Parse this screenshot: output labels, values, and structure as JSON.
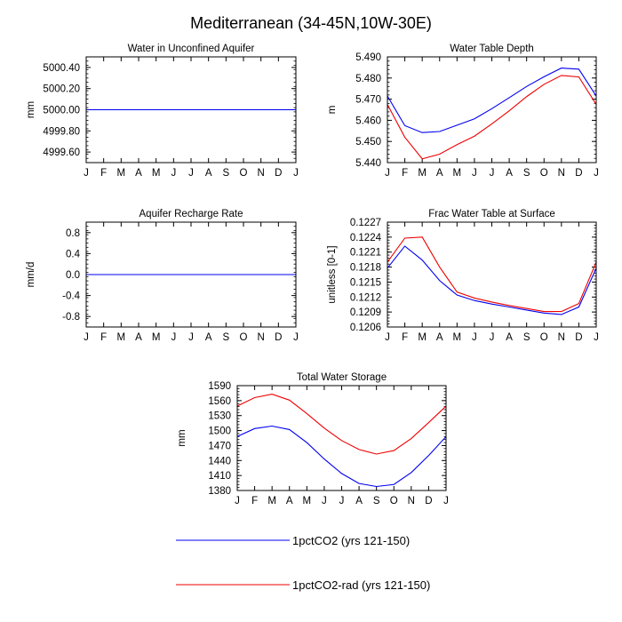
{
  "title": "Mediterranean (34-45N,10W-30E)",
  "colors": {
    "series1": "#0000ee",
    "series2": "#ee0000",
    "frame": "#000000"
  },
  "months": [
    "J",
    "F",
    "M",
    "A",
    "M",
    "J",
    "J",
    "A",
    "S",
    "O",
    "N",
    "D",
    "J"
  ],
  "legend": [
    {
      "label": "1pctCO2 (yrs 121-150)",
      "color": "#0000ee"
    },
    {
      "label": "1pctCO2-rad (yrs 121-150)",
      "color": "#ee0000"
    }
  ],
  "chart_data": [
    {
      "type": "line",
      "title": "Water in Unconfined Aquifer",
      "ylabel": "mm",
      "ylim": [
        4999.5,
        5000.5
      ],
      "yticks": [
        4999.6,
        4999.8,
        5000.0,
        5000.2,
        5000.4
      ],
      "ytick_labels": [
        "4999.60",
        "4999.80",
        "5000.00",
        "5000.20",
        "5000.40"
      ],
      "series": [
        {
          "values": [
            5000,
            5000,
            5000,
            5000,
            5000,
            5000,
            5000,
            5000,
            5000,
            5000,
            5000,
            5000,
            5000
          ]
        },
        {
          "values": [
            5000,
            5000,
            5000,
            5000,
            5000,
            5000,
            5000,
            5000,
            5000,
            5000,
            5000,
            5000,
            5000
          ]
        }
      ]
    },
    {
      "type": "line",
      "title": "Water Table Depth",
      "ylabel": "m",
      "ylim": [
        5.44,
        5.49
      ],
      "yticks": [
        5.44,
        5.45,
        5.46,
        5.47,
        5.48,
        5.49
      ],
      "ytick_labels": [
        "5.440",
        "5.450",
        "5.460",
        "5.470",
        "5.480",
        "5.490"
      ],
      "series": [
        {
          "values": [
            5.4715,
            5.4575,
            5.4542,
            5.4547,
            5.4577,
            5.4607,
            5.4655,
            5.4707,
            5.476,
            5.4806,
            5.4847,
            5.4842,
            5.4715
          ]
        },
        {
          "values": [
            5.4675,
            5.452,
            5.4418,
            5.444,
            5.4485,
            5.4525,
            5.4583,
            5.4645,
            5.4712,
            5.477,
            5.4812,
            5.4805,
            5.4675
          ]
        }
      ]
    },
    {
      "type": "line",
      "title": "Aquifer Recharge Rate",
      "ylabel": "mm/d",
      "ylim": [
        -1.0,
        1.0
      ],
      "yticks": [
        -0.8,
        -0.4,
        0.0,
        0.4,
        0.8
      ],
      "ytick_labels": [
        "-0.8",
        "-0.4",
        "0.0",
        "0.4",
        "0.8"
      ],
      "series": [
        {
          "values": [
            0,
            0,
            0,
            0,
            0,
            0,
            0,
            0,
            0,
            0,
            0,
            0,
            0
          ]
        },
        {
          "values": [
            0,
            0,
            0,
            0,
            0,
            0,
            0,
            0,
            0,
            0,
            0,
            0,
            0
          ]
        }
      ]
    },
    {
      "type": "line",
      "title": "Frac Water Table at Surface",
      "ylabel": "unitless [0-1]",
      "ylim": [
        0.1206,
        0.1227
      ],
      "yticks": [
        0.1206,
        0.1209,
        0.1212,
        0.1215,
        0.1218,
        0.1221,
        0.1224,
        0.1227
      ],
      "ytick_labels": [
        "0.1206",
        "0.1209",
        "0.1212",
        "0.1215",
        "0.1218",
        "0.1221",
        "0.1224",
        "0.1227"
      ],
      "series": [
        {
          "values": [
            0.12178,
            0.12222,
            0.12194,
            0.12153,
            0.12124,
            0.12113,
            0.12106,
            0.121,
            0.12094,
            0.12088,
            0.12085,
            0.121,
            0.12178
          ]
        },
        {
          "values": [
            0.1219,
            0.12238,
            0.1224,
            0.1218,
            0.1213,
            0.12118,
            0.1211,
            0.12103,
            0.12097,
            0.12091,
            0.12091,
            0.12107,
            0.1219
          ]
        }
      ]
    },
    {
      "type": "line",
      "title": "Total Water Storage",
      "ylabel": "mm",
      "ylim": [
        1380,
        1590
      ],
      "yticks": [
        1380,
        1410,
        1440,
        1470,
        1500,
        1530,
        1560,
        1590
      ],
      "ytick_labels": [
        "1380",
        "1410",
        "1440",
        "1470",
        "1500",
        "1530",
        "1560",
        "1590"
      ],
      "series": [
        {
          "values": [
            1488,
            1504,
            1509,
            1502,
            1476,
            1443,
            1414,
            1394,
            1388,
            1392,
            1416,
            1450,
            1488
          ]
        },
        {
          "values": [
            1549,
            1566,
            1573,
            1561,
            1534,
            1505,
            1480,
            1462,
            1453,
            1460,
            1484,
            1516,
            1549
          ]
        }
      ]
    }
  ]
}
